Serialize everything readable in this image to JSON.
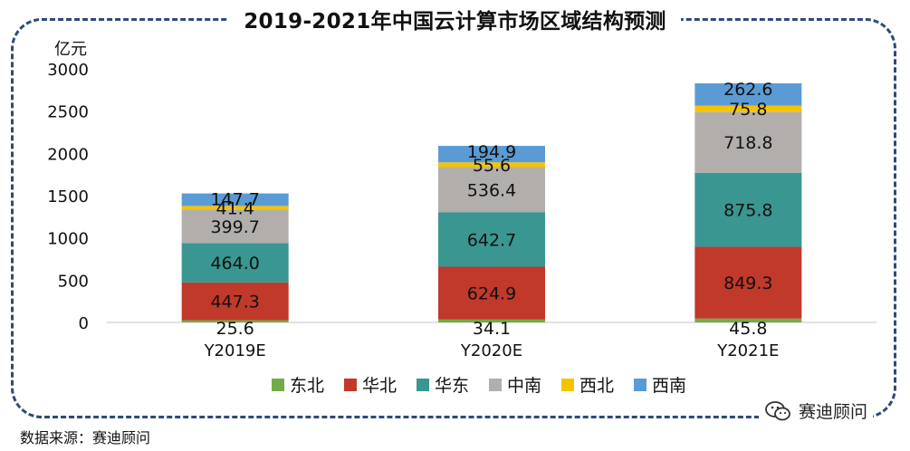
{
  "title": "2019-2021年中国云计算市场区域结构预测",
  "source": "数据来源：赛迪顾问",
  "brand": {
    "name": "赛迪顾问",
    "icon": "wechat-icon"
  },
  "chart_data": {
    "type": "bar",
    "stacked": true,
    "title": "2019-2021年中国云计算市场区域结构预测",
    "ylabel": "亿元",
    "xlabel": "",
    "ylim": [
      0,
      3000
    ],
    "yticks": [
      0,
      500,
      1000,
      1500,
      2000,
      2500,
      3000
    ],
    "categories": [
      "Y2019E",
      "Y2020E",
      "Y2021E"
    ],
    "legend_position": "bottom",
    "grid": false,
    "series": [
      {
        "name": "东北",
        "color": "#70ad47",
        "values": [
          25.6,
          34.1,
          45.8
        ]
      },
      {
        "name": "华北",
        "color": "#c0392b",
        "values": [
          447.3,
          624.9,
          849.3
        ]
      },
      {
        "name": "华东",
        "color": "#3a9690",
        "values": [
          464.0,
          642.7,
          875.8
        ]
      },
      {
        "name": "中南",
        "color": "#b2aeac",
        "values": [
          399.7,
          536.4,
          718.8
        ]
      },
      {
        "name": "西北",
        "color": "#f5c400",
        "values": [
          41.4,
          55.6,
          75.8
        ]
      },
      {
        "name": "西南",
        "color": "#5b9bd5",
        "values": [
          147.7,
          194.9,
          262.6
        ]
      }
    ]
  }
}
